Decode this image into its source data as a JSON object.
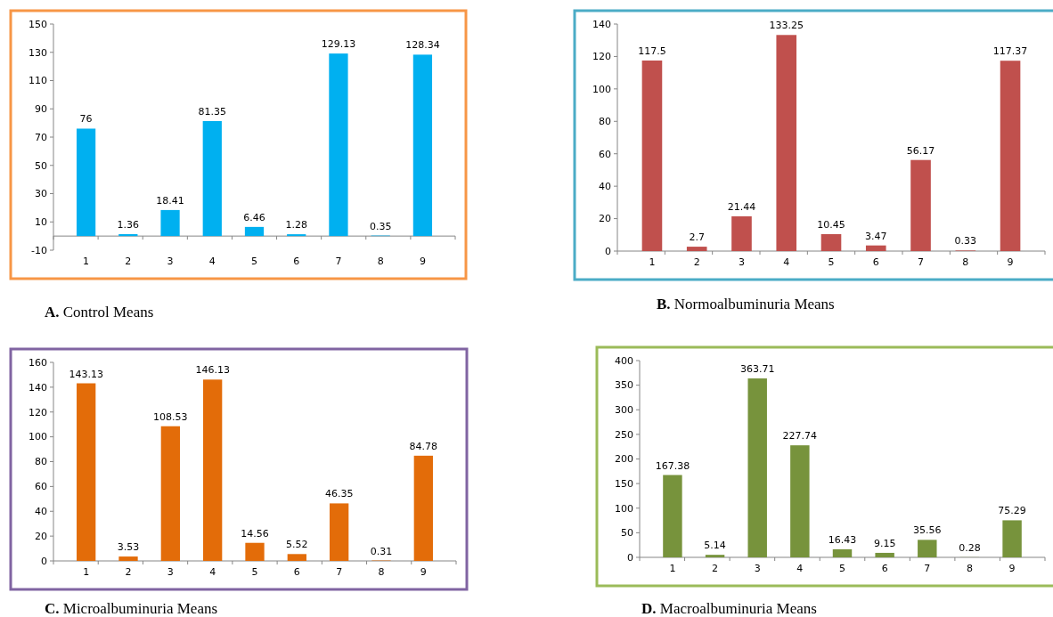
{
  "chart_data": [
    {
      "type": "bar",
      "title": "A. Control Means",
      "categories": [
        "1",
        "2",
        "3",
        "4",
        "5",
        "6",
        "7",
        "8",
        "9"
      ],
      "values": [
        76,
        1.36,
        18.41,
        81.35,
        6.46,
        1.28,
        129.13,
        0.35,
        128.34
      ],
      "color": "#00b0f0",
      "ylim": [
        -10,
        150
      ],
      "yticks": [
        -10,
        10,
        30,
        50,
        70,
        90,
        110,
        130,
        150
      ],
      "data_labels": true
    },
    {
      "type": "bar",
      "title": "B. Normoalbuminuria Means",
      "categories": [
        "1",
        "2",
        "3",
        "4",
        "5",
        "6",
        "7",
        "8",
        "9"
      ],
      "values": [
        117.5,
        2.7,
        21.44,
        133.25,
        10.45,
        3.47,
        56.17,
        0.33,
        117.37
      ],
      "color": "#c0504d",
      "ylim": [
        0,
        140
      ],
      "yticks": [
        0,
        20,
        40,
        60,
        80,
        100,
        120,
        140
      ],
      "data_labels": true
    },
    {
      "type": "bar",
      "title": "C. Microalbuminuria Means",
      "categories": [
        "1",
        "2",
        "3",
        "4",
        "5",
        "6",
        "7",
        "8",
        "9"
      ],
      "values": [
        143.13,
        3.53,
        108.53,
        146.13,
        14.56,
        5.52,
        46.35,
        0.31,
        84.78
      ],
      "color": "#e36c09",
      "ylim": [
        0,
        160
      ],
      "yticks": [
        0,
        20,
        40,
        60,
        80,
        100,
        120,
        140,
        160
      ],
      "data_labels": true
    },
    {
      "type": "bar",
      "title": "D. Macroalbuminuria Means",
      "categories": [
        "1",
        "2",
        "3",
        "4",
        "5",
        "6",
        "7",
        "8",
        "9"
      ],
      "values": [
        167.38,
        5.14,
        363.71,
        227.74,
        16.43,
        9.15,
        35.56,
        0.28,
        75.29
      ],
      "color": "#77933c",
      "ylim": [
        0,
        400
      ],
      "yticks": [
        0,
        50,
        100,
        150,
        200,
        250,
        300,
        350,
        400
      ],
      "data_labels": true
    }
  ]
}
